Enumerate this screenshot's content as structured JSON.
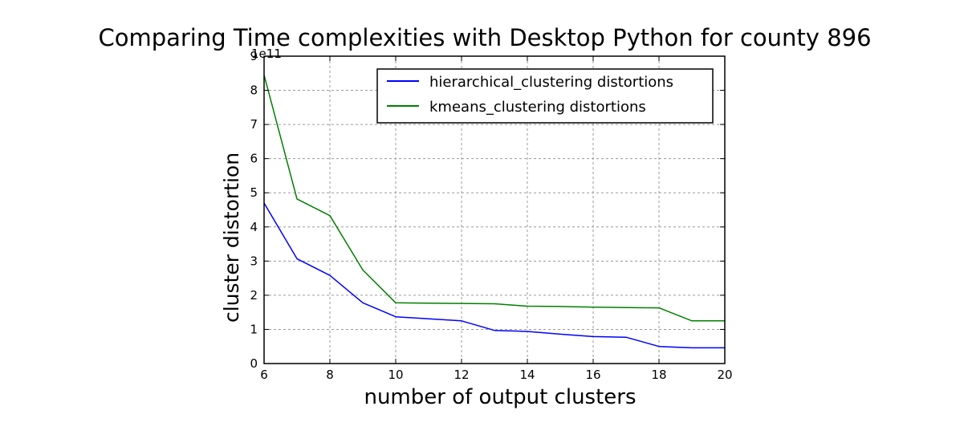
{
  "chart_data": {
    "type": "line",
    "title": "Comparing Time complexities with Desktop Python for county 896",
    "xlabel": "number of output clusters",
    "ylabel": "cluster distortion",
    "y_offset_label": "1e11",
    "xlim": [
      6,
      20
    ],
    "ylim": [
      0,
      9
    ],
    "x_ticks": [
      6,
      8,
      10,
      12,
      14,
      16,
      18,
      20
    ],
    "y_ticks": [
      0,
      1,
      2,
      3,
      4,
      5,
      6,
      7,
      8,
      9
    ],
    "grid": true,
    "legend_position": "top-right",
    "x": [
      6,
      7,
      8,
      9,
      10,
      11,
      12,
      13,
      14,
      15,
      16,
      17,
      18,
      19,
      20
    ],
    "series": [
      {
        "name": "hierarchical_clustering distortions",
        "color": "#0000ff",
        "values": [
          4.7,
          3.07,
          2.58,
          1.78,
          1.37,
          1.31,
          1.25,
          0.97,
          0.94,
          0.86,
          0.79,
          0.77,
          0.5,
          0.46,
          0.46
        ]
      },
      {
        "name": "kmeans_clustering distortions",
        "color": "#008000",
        "values": [
          8.45,
          4.82,
          4.33,
          2.74,
          1.78,
          1.77,
          1.76,
          1.75,
          1.68,
          1.67,
          1.65,
          1.64,
          1.63,
          1.25,
          1.25
        ]
      }
    ]
  }
}
